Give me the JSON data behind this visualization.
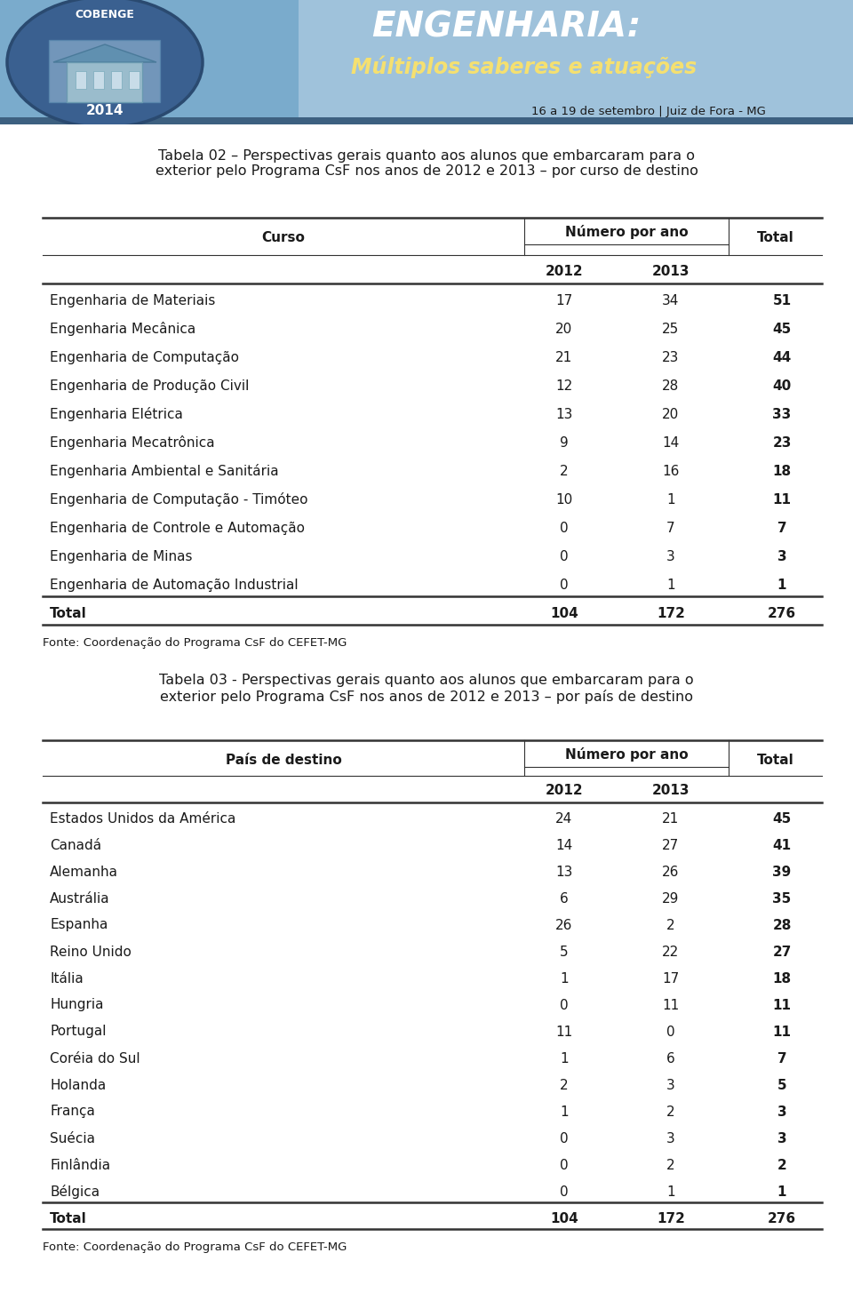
{
  "bg_color": "#ffffff",
  "header_bg": "#6a9fcb",
  "header_dark": "#3d6b9c",
  "title1": "Tabela 02 – Perspectivas gerais quanto aos alunos que embarcaram para o\nexterior pelo Programa CsF nos anos de 2012 e 2013 – por curso de destino",
  "table1_header_col": "Curso",
  "table1_subheader": "Número por ano",
  "table1_col2012": "2012",
  "table1_col2013": "2013",
  "table1_colTotal": "Total",
  "table1_rows": [
    [
      "Engenharia de Materiais",
      "17",
      "34",
      "51"
    ],
    [
      "Engenharia Mecânica",
      "20",
      "25",
      "45"
    ],
    [
      "Engenharia de Computação",
      "21",
      "23",
      "44"
    ],
    [
      "Engenharia de Produção Civil",
      "12",
      "28",
      "40"
    ],
    [
      "Engenharia Elétrica",
      "13",
      "20",
      "33"
    ],
    [
      "Engenharia Mecatrônica",
      "9",
      "14",
      "23"
    ],
    [
      "Engenharia Ambiental e Sanitária",
      "2",
      "16",
      "18"
    ],
    [
      "Engenharia de Computação - Timóteo",
      "10",
      "1",
      "11"
    ],
    [
      "Engenharia de Controle e Automação",
      "0",
      "7",
      "7"
    ],
    [
      "Engenharia de Minas",
      "0",
      "3",
      "3"
    ],
    [
      "Engenharia de Automação Industrial",
      "0",
      "1",
      "1"
    ]
  ],
  "table1_total": [
    "Total",
    "104",
    "172",
    "276"
  ],
  "table1_fonte": "Fonte: Coordenação do Programa CsF do CEFET-MG",
  "title2": "Tabela 03 - Perspectivas gerais quanto aos alunos que embarcaram para o\nexterior pelo Programa CsF nos anos de 2012 e 2013 – por país de destino",
  "table2_header_col": "País de destino",
  "table2_subheader": "Número por ano",
  "table2_col2012": "2012",
  "table2_col2013": "2013",
  "table2_colTotal": "Total",
  "table2_rows": [
    [
      "Estados Unidos da América",
      "24",
      "21",
      "45"
    ],
    [
      "Canadá",
      "14",
      "27",
      "41"
    ],
    [
      "Alemanha",
      "13",
      "26",
      "39"
    ],
    [
      "Austrália",
      "6",
      "29",
      "35"
    ],
    [
      "Espanha",
      "26",
      "2",
      "28"
    ],
    [
      "Reino Unido",
      "5",
      "22",
      "27"
    ],
    [
      "Itália",
      "1",
      "17",
      "18"
    ],
    [
      "Hungria",
      "0",
      "11",
      "11"
    ],
    [
      "Portugal",
      "11",
      "0",
      "11"
    ],
    [
      "Coréia do Sul",
      "1",
      "6",
      "7"
    ],
    [
      "Holanda",
      "2",
      "3",
      "5"
    ],
    [
      "França",
      "1",
      "2",
      "3"
    ],
    [
      "Suécia",
      "0",
      "3",
      "3"
    ],
    [
      "Finlândia",
      "0",
      "2",
      "2"
    ],
    [
      "Bélgica",
      "0",
      "1",
      "1"
    ]
  ],
  "table2_total": [
    "Total",
    "104",
    "172",
    "276"
  ],
  "table2_fonte": "Fonte: Coordenação do Programa CsF do CEFET-MG",
  "font_size_title": 11.5,
  "font_size_table": 11,
  "font_size_header": 11,
  "text_color": "#1a1a1a",
  "line_color": "#333333"
}
